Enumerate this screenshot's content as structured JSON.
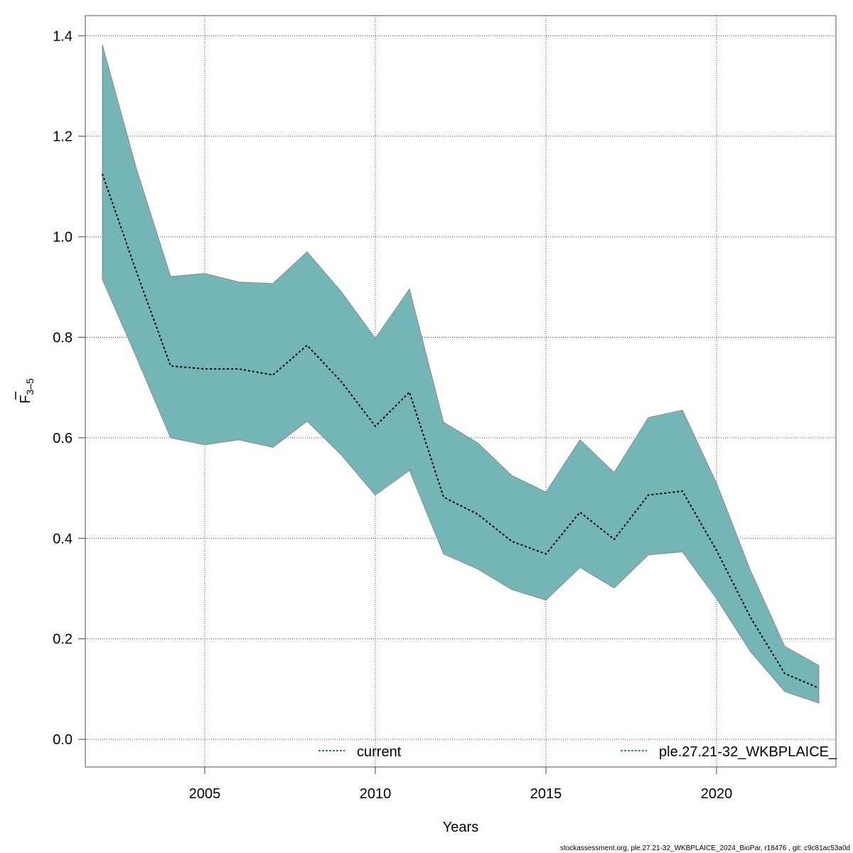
{
  "chart_data": {
    "type": "area",
    "title": "",
    "xlabel": "Years",
    "ylabel_main": "F",
    "ylabel_sub": "3–5",
    "xlim": [
      2001.5,
      2023.5
    ],
    "ylim": [
      -0.055,
      1.44
    ],
    "xticks": [
      2005,
      2010,
      2015,
      2020
    ],
    "yticks": [
      "0.0",
      "0.2",
      "0.4",
      "0.6",
      "0.8",
      "1.0",
      "1.2",
      "1.4"
    ],
    "grid": true,
    "legend_placement": "bottom",
    "x": [
      2002,
      2003,
      2004,
      2005,
      2006,
      2007,
      2008,
      2009,
      2010,
      2011,
      2012,
      2013,
      2014,
      2015,
      2016,
      2017,
      2018,
      2019,
      2020,
      2021,
      2022,
      2023
    ],
    "series": [
      {
        "name": "ple.27.21-32_WKBPLAICE_",
        "role": "estimate",
        "values": [
          1.125,
          0.93,
          0.743,
          0.737,
          0.737,
          0.725,
          0.784,
          0.712,
          0.623,
          0.691,
          0.482,
          0.448,
          0.394,
          0.369,
          0.452,
          0.398,
          0.486,
          0.494,
          0.376,
          0.242,
          0.131,
          0.102
        ]
      },
      {
        "role": "upper",
        "values": [
          1.382,
          1.135,
          0.921,
          0.927,
          0.91,
          0.907,
          0.97,
          0.891,
          0.798,
          0.896,
          0.631,
          0.59,
          0.525,
          0.492,
          0.596,
          0.531,
          0.64,
          0.655,
          0.51,
          0.335,
          0.185,
          0.147
        ]
      },
      {
        "role": "lower",
        "values": [
          0.915,
          0.76,
          0.6,
          0.586,
          0.596,
          0.581,
          0.633,
          0.566,
          0.486,
          0.535,
          0.369,
          0.339,
          0.298,
          0.277,
          0.342,
          0.301,
          0.367,
          0.373,
          0.28,
          0.174,
          0.095,
          0.072
        ]
      }
    ],
    "legend": [
      {
        "label": "current",
        "color": "#1f78b4"
      },
      {
        "label": "ple.27.21-32_WKBPLAICE_",
        "color": "#1b9e77"
      }
    ],
    "band_color": "#74b6b6",
    "line_color": "#000000"
  },
  "footer": "stockassessment.org, ple.27.21-32_WKBPLAICE_2024_BioPar, r18476 , git: c9c81ac53a0d"
}
